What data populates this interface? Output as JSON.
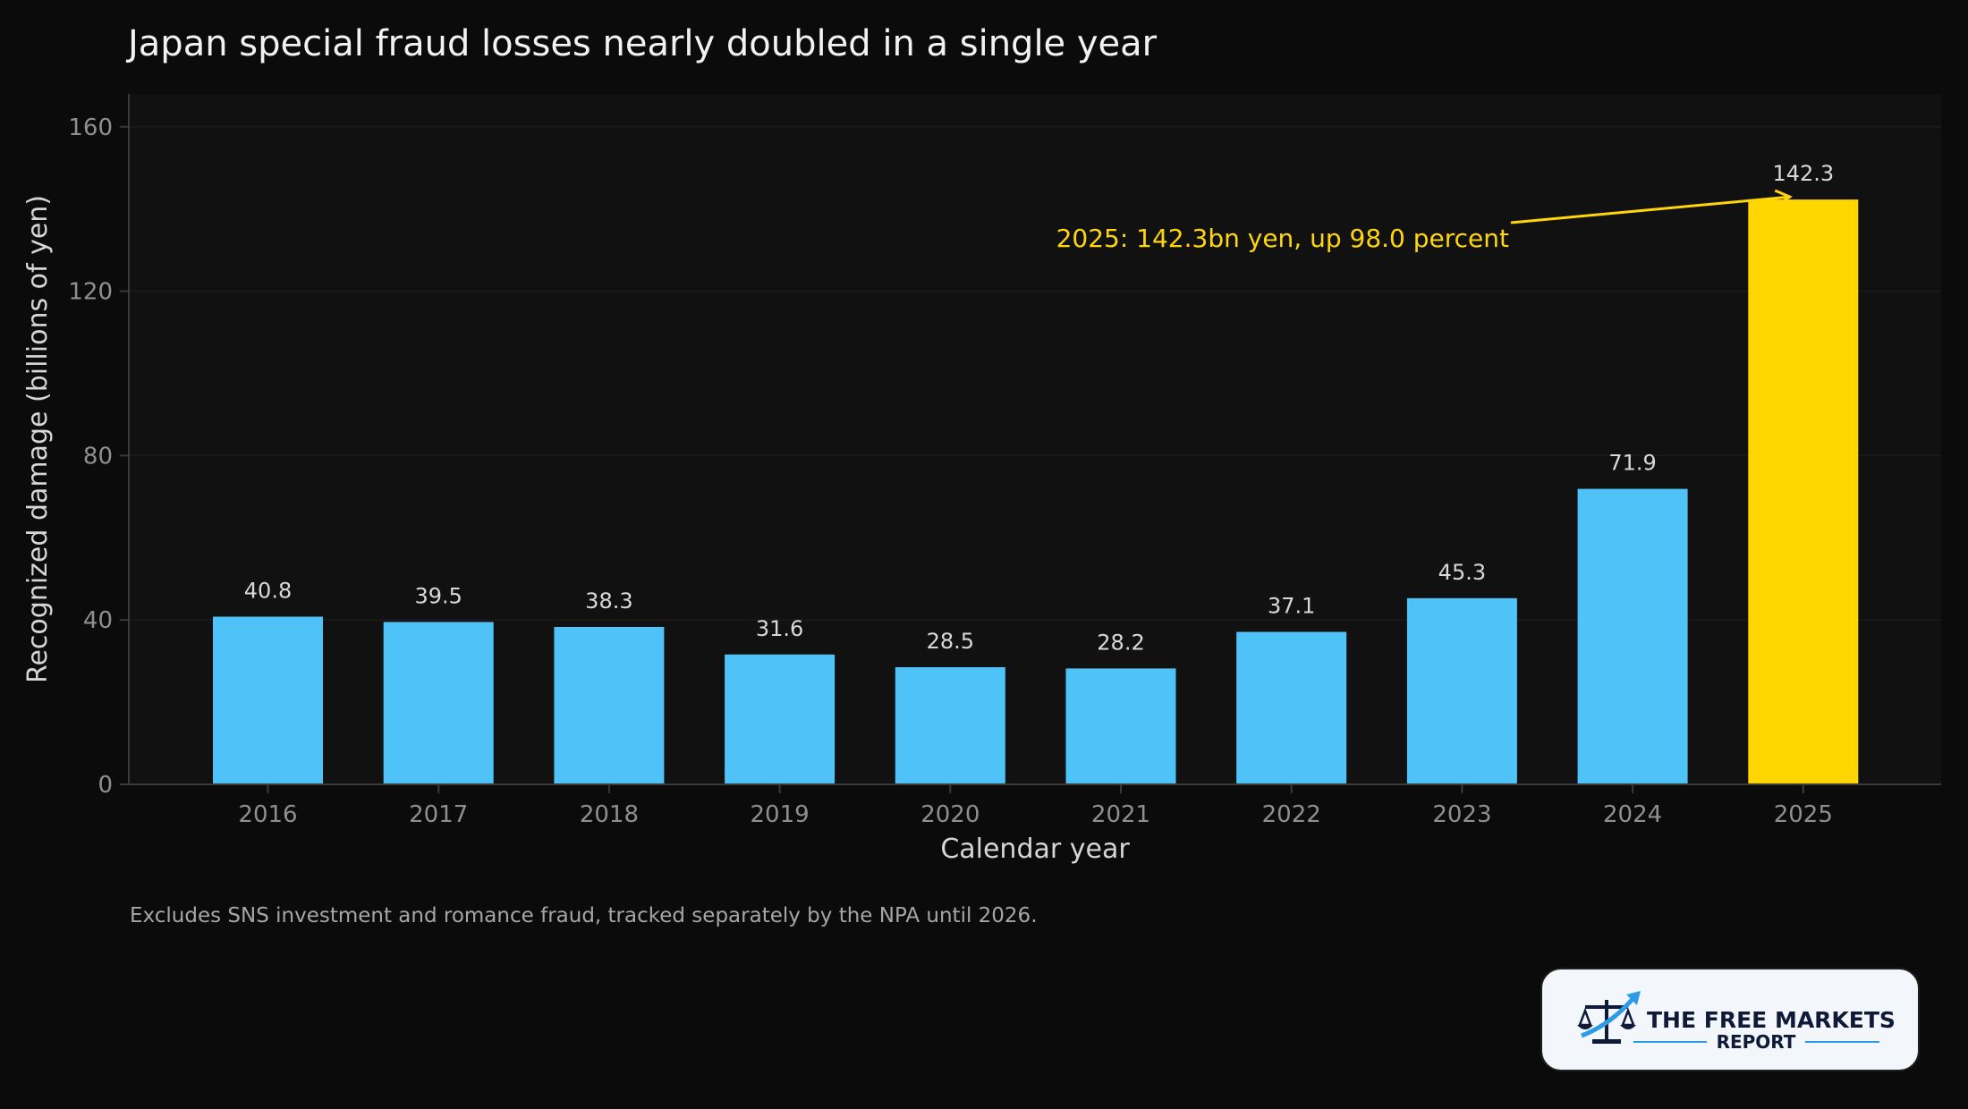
{
  "chart_data": {
    "type": "bar",
    "title": "Japan special fraud losses nearly doubled in a single year",
    "xlabel": "Calendar year",
    "ylabel": "Recognized damage (billions of yen)",
    "categories": [
      "2016",
      "2017",
      "2018",
      "2019",
      "2020",
      "2021",
      "2022",
      "2023",
      "2024",
      "2025"
    ],
    "values": [
      40.8,
      39.5,
      38.3,
      31.6,
      28.5,
      28.2,
      37.1,
      45.3,
      71.9,
      142.3
    ],
    "value_labels": [
      "40.8",
      "39.5",
      "38.3",
      "31.6",
      "28.5",
      "28.2",
      "37.1",
      "45.3",
      "71.9",
      "142.3"
    ],
    "ylim": [
      0,
      168
    ],
    "yticks": [
      0,
      40,
      80,
      120,
      160
    ],
    "ytick_labels": [
      "0",
      "40",
      "80",
      "120",
      "160"
    ],
    "grid": true,
    "highlight_index": 9,
    "annotation": {
      "text": "2025: 142.3bn yen, up 98.0 percent",
      "target_category": "2025",
      "target_value": 142.3
    },
    "footnote": "Excludes SNS investment and romance fraud, tracked separately by the NPA until 2026."
  },
  "colors": {
    "page_background": "#0b0b0b",
    "plot_background": "#111111",
    "bar": "#4fc3f7",
    "highlight_bar": "#ffd600",
    "annotation": "#ffd60a",
    "gridline": "#1c1c1c",
    "axis": "#3a3a3a"
  },
  "logo": {
    "line1": "THE FREE MARKETS",
    "line2": "REPORT",
    "icon": "scales-with-rising-arrow-icon"
  }
}
